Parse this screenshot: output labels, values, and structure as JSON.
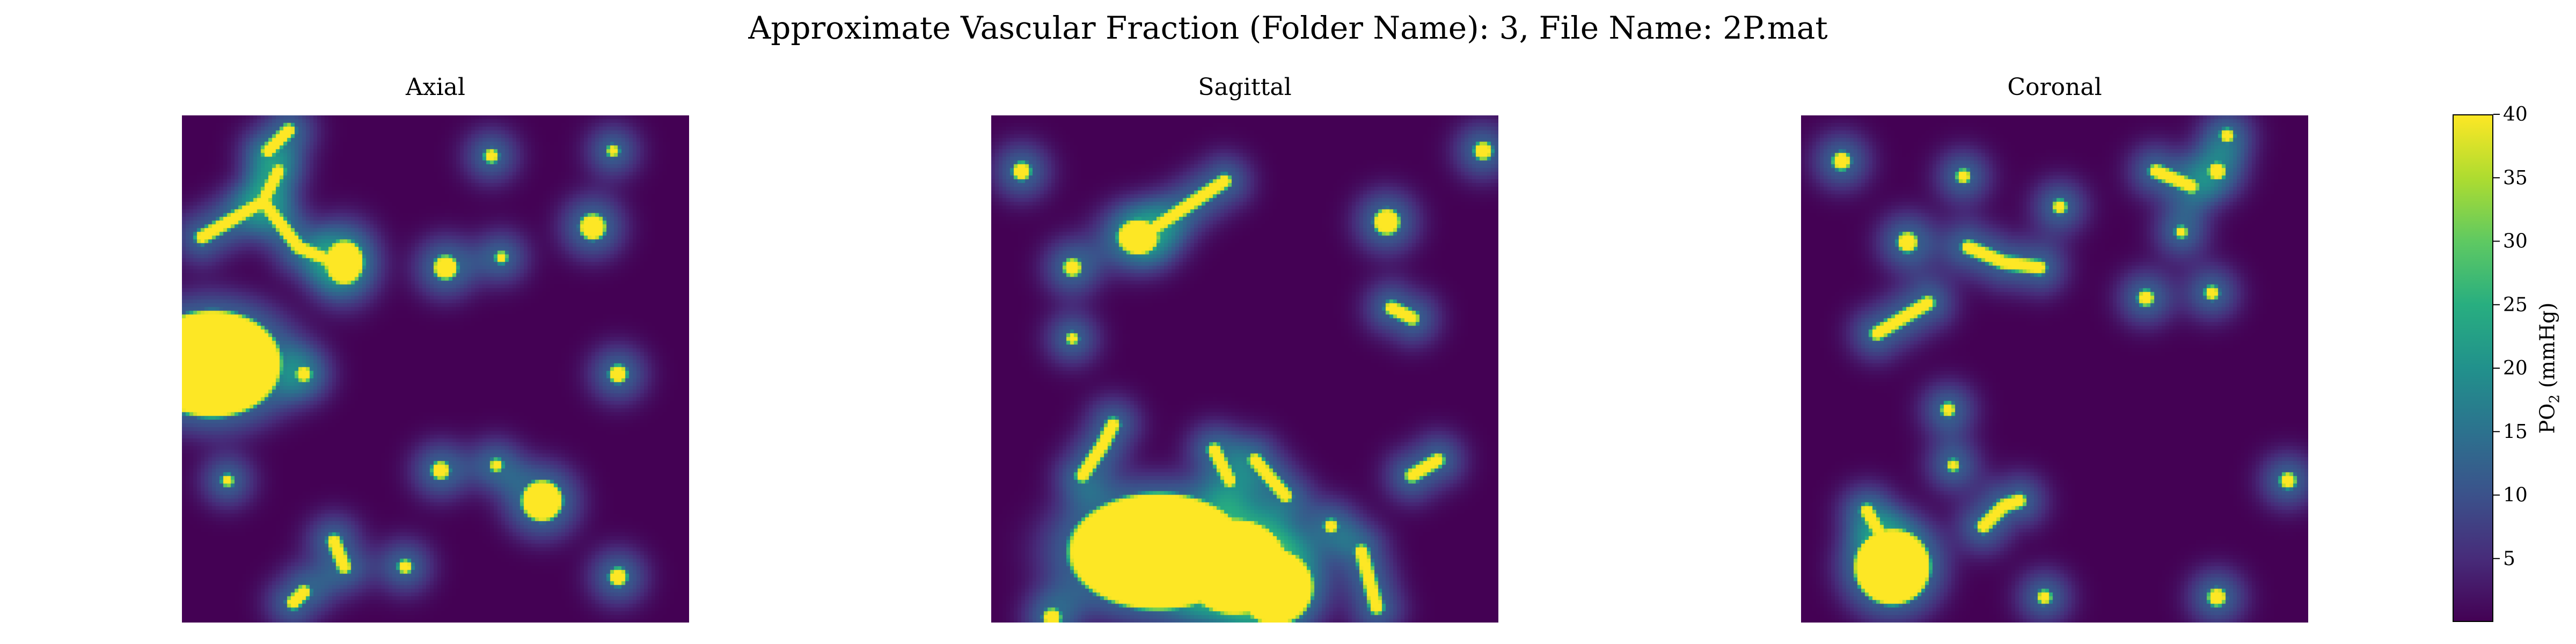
{
  "figure": {
    "title": "Approximate Vascular Fraction (Folder Name): 3, File Name: 2P.mat"
  },
  "colormap": {
    "name": "viridis",
    "stops": [
      "#440154",
      "#472c7a",
      "#3b528b",
      "#2c728e",
      "#21918c",
      "#28ae80",
      "#5ec962",
      "#addc30",
      "#fde725"
    ]
  },
  "chart_data": {
    "type": "heatmap",
    "title": "Approximate Vascular Fraction (Folder Name): 3, File Name: 2P.mat",
    "panels": [
      {
        "title": "Axial",
        "vessels": [
          {
            "kind": "blob",
            "x": 0.06,
            "y": 0.49,
            "rx": 0.13,
            "ry": 0.1
          },
          {
            "kind": "blob",
            "x": 0.32,
            "y": 0.29,
            "rx": 0.033,
            "ry": 0.038
          },
          {
            "kind": "line",
            "pts": [
              [
                0.04,
                0.24
              ],
              [
                0.16,
                0.17
              ],
              [
                0.19,
                0.11
              ]
            ]
          },
          {
            "kind": "line",
            "pts": [
              [
                0.16,
                0.17
              ],
              [
                0.23,
                0.26
              ],
              [
                0.3,
                0.29
              ]
            ]
          },
          {
            "kind": "dot",
            "x": 0.52,
            "y": 0.3,
            "r": 0.018
          },
          {
            "kind": "dot",
            "x": 0.63,
            "y": 0.28,
            "r": 0.006
          },
          {
            "kind": "dot",
            "x": 0.81,
            "y": 0.22,
            "r": 0.02
          },
          {
            "kind": "dot",
            "x": 0.86,
            "y": 0.51,
            "r": 0.012
          },
          {
            "kind": "dot",
            "x": 0.61,
            "y": 0.08,
            "r": 0.008
          },
          {
            "kind": "dot",
            "x": 0.85,
            "y": 0.07,
            "r": 0.006
          },
          {
            "kind": "line",
            "pts": [
              [
                0.21,
                0.03
              ],
              [
                0.17,
                0.07
              ]
            ]
          },
          {
            "kind": "blob",
            "x": 0.71,
            "y": 0.76,
            "rx": 0.035,
            "ry": 0.035
          },
          {
            "kind": "dot",
            "x": 0.51,
            "y": 0.7,
            "r": 0.012
          },
          {
            "kind": "dot",
            "x": 0.62,
            "y": 0.69,
            "r": 0.007
          },
          {
            "kind": "line",
            "pts": [
              [
                0.3,
                0.84
              ],
              [
                0.32,
                0.89
              ]
            ]
          },
          {
            "kind": "line",
            "pts": [
              [
                0.22,
                0.96
              ],
              [
                0.24,
                0.94
              ]
            ]
          },
          {
            "kind": "dot",
            "x": 0.86,
            "y": 0.91,
            "r": 0.012
          },
          {
            "kind": "dot",
            "x": 0.09,
            "y": 0.72,
            "r": 0.006
          },
          {
            "kind": "dot",
            "x": 0.24,
            "y": 0.51,
            "r": 0.01
          },
          {
            "kind": "dot",
            "x": 0.44,
            "y": 0.89,
            "r": 0.008
          }
        ]
      },
      {
        "title": "Sagittal",
        "vessels": [
          {
            "kind": "blob",
            "x": 0.33,
            "y": 0.86,
            "rx": 0.17,
            "ry": 0.11
          },
          {
            "kind": "blob",
            "x": 0.48,
            "y": 0.89,
            "rx": 0.1,
            "ry": 0.09
          },
          {
            "kind": "blob",
            "x": 0.56,
            "y": 0.93,
            "rx": 0.07,
            "ry": 0.07
          },
          {
            "kind": "line",
            "pts": [
              [
                0.18,
                0.71
              ],
              [
                0.22,
                0.65
              ],
              [
                0.24,
                0.61
              ]
            ]
          },
          {
            "kind": "line",
            "pts": [
              [
                0.44,
                0.66
              ],
              [
                0.47,
                0.72
              ]
            ]
          },
          {
            "kind": "line",
            "pts": [
              [
                0.52,
                0.68
              ],
              [
                0.58,
                0.75
              ]
            ]
          },
          {
            "kind": "blob",
            "x": 0.29,
            "y": 0.24,
            "rx": 0.035,
            "ry": 0.03
          },
          {
            "kind": "line",
            "pts": [
              [
                0.31,
                0.23
              ],
              [
                0.4,
                0.17
              ],
              [
                0.46,
                0.13
              ]
            ]
          },
          {
            "kind": "dot",
            "x": 0.06,
            "y": 0.11,
            "r": 0.012
          },
          {
            "kind": "dot",
            "x": 0.97,
            "y": 0.07,
            "r": 0.012
          },
          {
            "kind": "dot",
            "x": 0.78,
            "y": 0.21,
            "r": 0.02
          },
          {
            "kind": "line",
            "pts": [
              [
                0.79,
                0.38
              ],
              [
                0.83,
                0.4
              ]
            ]
          },
          {
            "kind": "dot",
            "x": 0.16,
            "y": 0.3,
            "r": 0.012
          },
          {
            "kind": "dot",
            "x": 0.16,
            "y": 0.44,
            "r": 0.006
          },
          {
            "kind": "line",
            "pts": [
              [
                0.73,
                0.86
              ],
              [
                0.76,
                0.97
              ]
            ]
          },
          {
            "kind": "line",
            "pts": [
              [
                0.83,
                0.71
              ],
              [
                0.88,
                0.68
              ]
            ]
          },
          {
            "kind": "dot",
            "x": 0.12,
            "y": 0.99,
            "r": 0.012
          },
          {
            "kind": "dot",
            "x": 0.67,
            "y": 0.81,
            "r": 0.008
          }
        ]
      },
      {
        "title": "Coronal",
        "vessels": [
          {
            "kind": "blob",
            "x": 0.18,
            "y": 0.89,
            "rx": 0.07,
            "ry": 0.07
          },
          {
            "kind": "line",
            "pts": [
              [
                0.13,
                0.78
              ],
              [
                0.17,
                0.85
              ]
            ]
          },
          {
            "kind": "line",
            "pts": [
              [
                0.15,
                0.43
              ],
              [
                0.25,
                0.37
              ]
            ]
          },
          {
            "kind": "line",
            "pts": [
              [
                0.33,
                0.26
              ],
              [
                0.4,
                0.29
              ],
              [
                0.47,
                0.3
              ]
            ]
          },
          {
            "kind": "dot",
            "x": 0.21,
            "y": 0.25,
            "r": 0.014
          },
          {
            "kind": "dot",
            "x": 0.08,
            "y": 0.09,
            "r": 0.012
          },
          {
            "kind": "line",
            "pts": [
              [
                0.7,
                0.11
              ],
              [
                0.77,
                0.14
              ]
            ]
          },
          {
            "kind": "dot",
            "x": 0.82,
            "y": 0.11,
            "r": 0.012
          },
          {
            "kind": "dot",
            "x": 0.84,
            "y": 0.04,
            "r": 0.008
          },
          {
            "kind": "dot",
            "x": 0.51,
            "y": 0.18,
            "r": 0.008
          },
          {
            "kind": "dot",
            "x": 0.68,
            "y": 0.36,
            "r": 0.01
          },
          {
            "kind": "dot",
            "x": 0.81,
            "y": 0.35,
            "r": 0.008
          },
          {
            "kind": "dot",
            "x": 0.29,
            "y": 0.58,
            "r": 0.008
          },
          {
            "kind": "dot",
            "x": 0.3,
            "y": 0.69,
            "r": 0.006
          },
          {
            "kind": "line",
            "pts": [
              [
                0.36,
                0.81
              ],
              [
                0.4,
                0.77
              ],
              [
                0.43,
                0.76
              ]
            ]
          },
          {
            "kind": "dot",
            "x": 0.96,
            "y": 0.72,
            "r": 0.01
          },
          {
            "kind": "dot",
            "x": 0.48,
            "y": 0.95,
            "r": 0.008
          },
          {
            "kind": "dot",
            "x": 0.82,
            "y": 0.95,
            "r": 0.012
          },
          {
            "kind": "dot",
            "x": 0.32,
            "y": 0.12,
            "r": 0.008
          },
          {
            "kind": "dot",
            "x": 0.75,
            "y": 0.23,
            "r": 0.006
          }
        ]
      }
    ],
    "colorbar": {
      "label_main": "PO",
      "label_sub": "2",
      "label_unit": " (mmHg)",
      "range": [
        0,
        40
      ],
      "ticks": [
        5,
        10,
        15,
        20,
        25,
        30,
        35,
        40
      ],
      "tick_labels": [
        "5",
        "10",
        "15",
        "20",
        "25",
        "30",
        "35",
        "40"
      ]
    }
  }
}
